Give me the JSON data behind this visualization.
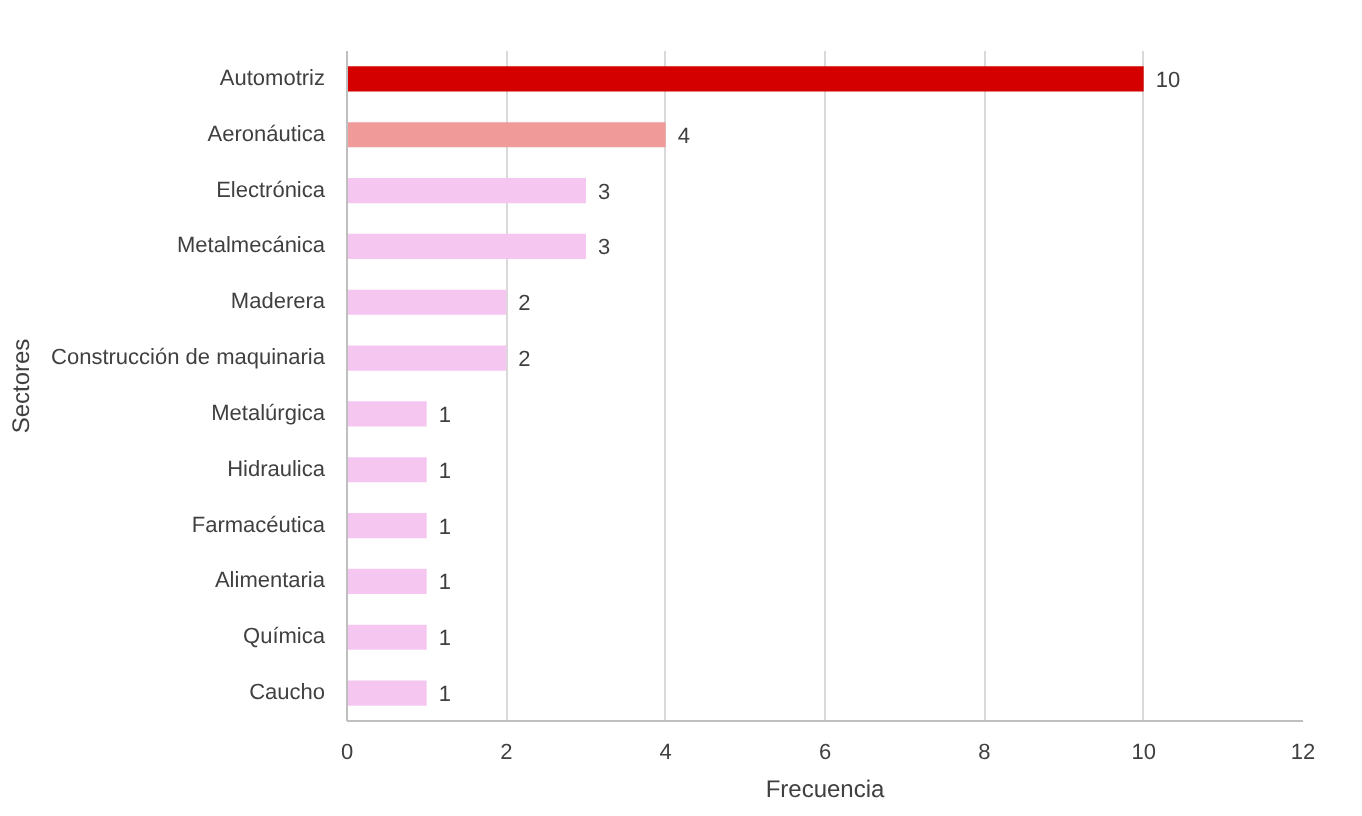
{
  "chart_data": {
    "type": "bar",
    "orientation": "horizontal",
    "categories": [
      "Automotriz",
      "Aeronáutica",
      "Electrónica",
      "Metalmecánica",
      "Maderera",
      "Construcción de maquinaria",
      "Metalúrgica",
      "Hidraulica",
      "Farmacéutica",
      "Alimentaria",
      "Química",
      "Caucho"
    ],
    "values": [
      10,
      4,
      3,
      3,
      2,
      2,
      1,
      1,
      1,
      1,
      1,
      1
    ],
    "colors": [
      "#d40000",
      "#f09a9a",
      "#f5c6ef",
      "#f5c6ef",
      "#f5c6ef",
      "#f5c6ef",
      "#f5c6ef",
      "#f5c6ef",
      "#f5c6ef",
      "#f5c6ef",
      "#f5c6ef",
      "#f5c6ef"
    ],
    "xlim": [
      0,
      12
    ],
    "xticks": [
      0,
      2,
      4,
      6,
      8,
      10,
      12
    ],
    "xlabel": "Frecuencia",
    "ylabel": "Sectores",
    "grid": "x",
    "data_labels": true
  }
}
